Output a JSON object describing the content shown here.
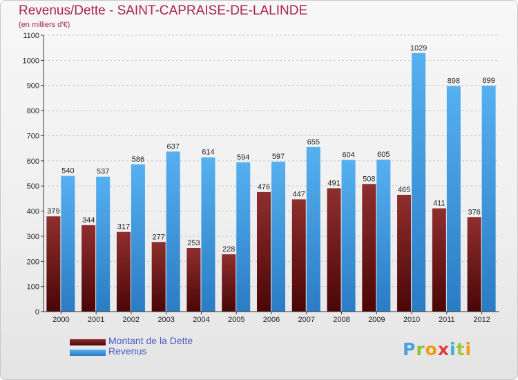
{
  "chart_data": {
    "type": "bar",
    "title": "Revenus/Dette - SAINT-CAPRAISE-DE-LALINDE",
    "subtitle": "(en milliers d'€)",
    "categories": [
      "2000",
      "2001",
      "2002",
      "2003",
      "2004",
      "2005",
      "2006",
      "2007",
      "2008",
      "2009",
      "2010",
      "2011",
      "2012"
    ],
    "series": [
      {
        "name": "Montant de la Dette",
        "color": "#7a1e1e",
        "values": [
          379,
          344,
          317,
          277,
          253,
          228,
          476,
          447,
          491,
          508,
          465,
          411,
          376
        ]
      },
      {
        "name": "Revenus",
        "color": "#3f9be0",
        "values": [
          540,
          537,
          586,
          637,
          614,
          594,
          597,
          655,
          604,
          605,
          1029,
          898,
          899
        ]
      }
    ],
    "ylim": [
      0,
      1100
    ],
    "yticks": [
      0,
      100,
      200,
      300,
      400,
      500,
      600,
      700,
      800,
      900,
      1000,
      1100
    ],
    "grid": true,
    "legend_position": "bottom-left",
    "xlabel": "",
    "ylabel": ""
  },
  "logo": {
    "text": "Proxiti"
  }
}
